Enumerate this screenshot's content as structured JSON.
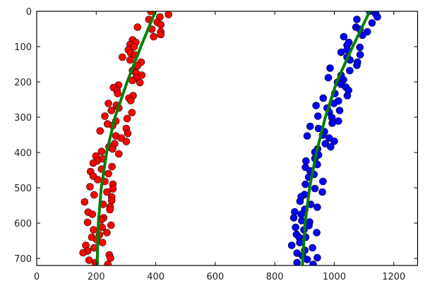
{
  "chart_data": {
    "type": "scatter",
    "title": "",
    "xlabel": "",
    "ylabel": "",
    "xlim": [
      0,
      1280
    ],
    "ylim": [
      720,
      0
    ],
    "y_inverted": true,
    "grid": false,
    "xticks": [
      0,
      200,
      400,
      600,
      800,
      1000,
      1200
    ],
    "yticks": [
      0,
      100,
      200,
      300,
      400,
      500,
      600,
      700
    ],
    "series": [
      {
        "kind": "scatter",
        "color": "#ff0000",
        "edge_color": "#000000",
        "points": [
          [
            383,
            0
          ],
          [
            377,
            23
          ],
          [
            414,
            16
          ],
          [
            443,
            9
          ],
          [
            405,
            31
          ],
          [
            417,
            38
          ],
          [
            387,
            51
          ],
          [
            417,
            58
          ],
          [
            417,
            66
          ],
          [
            393,
            72
          ],
          [
            339,
            45
          ],
          [
            322,
            81
          ],
          [
            333,
            88
          ],
          [
            314,
            94
          ],
          [
            327,
            101
          ],
          [
            308,
            109
          ],
          [
            316,
            118
          ],
          [
            331,
            124
          ],
          [
            288,
            130
          ],
          [
            314,
            138
          ],
          [
            351,
            144
          ],
          [
            339,
            154
          ],
          [
            322,
            168
          ],
          [
            334,
            174
          ],
          [
            353,
            181
          ],
          [
            334,
            188
          ],
          [
            322,
            196
          ],
          [
            347,
            202
          ],
          [
            275,
            209
          ],
          [
            258,
            216
          ],
          [
            270,
            224
          ],
          [
            272,
            233
          ],
          [
            324,
            239
          ],
          [
            310,
            246
          ],
          [
            316,
            253
          ],
          [
            241,
            261
          ],
          [
            268,
            266
          ],
          [
            276,
            274
          ],
          [
            251,
            281
          ],
          [
            320,
            287
          ],
          [
            229,
            297
          ],
          [
            304,
            304
          ],
          [
            266,
            311
          ],
          [
            238,
            319
          ],
          [
            255,
            324
          ],
          [
            301,
            332
          ],
          [
            306,
            346
          ],
          [
            213,
            339
          ],
          [
            266,
            353
          ],
          [
            284,
            359
          ],
          [
            301,
            369
          ],
          [
            262,
            375
          ],
          [
            243,
            384
          ],
          [
            255,
            390
          ],
          [
            276,
            404
          ],
          [
            218,
            397
          ],
          [
            199,
            410
          ],
          [
            222,
            418
          ],
          [
            203,
            424
          ],
          [
            190,
            430
          ],
          [
            253,
            440
          ],
          [
            218,
            447
          ],
          [
            241,
            460
          ],
          [
            181,
            454
          ],
          [
            190,
            467
          ],
          [
            205,
            477
          ],
          [
            229,
            482
          ],
          [
            256,
            490
          ],
          [
            256,
            503
          ],
          [
            179,
            497
          ],
          [
            193,
            520
          ],
          [
            236,
            512
          ],
          [
            252,
            526
          ],
          [
            252,
            536
          ],
          [
            161,
            540
          ],
          [
            223,
            547
          ],
          [
            247,
            554
          ],
          [
            246,
            562
          ],
          [
            173,
            569
          ],
          [
            187,
            575
          ],
          [
            225,
            585
          ],
          [
            217,
            591
          ],
          [
            171,
            598
          ],
          [
            250,
            606
          ],
          [
            220,
            612
          ],
          [
            191,
            619
          ],
          [
            236,
            627
          ],
          [
            211,
            633
          ],
          [
            185,
            640
          ],
          [
            202,
            647
          ],
          [
            221,
            655
          ],
          [
            165,
            663
          ],
          [
            193,
            670
          ],
          [
            171,
            679
          ],
          [
            156,
            684
          ],
          [
            244,
            690
          ],
          [
            248,
            699
          ],
          [
            176,
            705
          ],
          [
            197,
            712
          ],
          [
            239,
            717
          ]
        ]
      },
      {
        "kind": "scatter",
        "color": "#0000ff",
        "edge_color": "#000000",
        "points": [
          [
            1119,
            0
          ],
          [
            1139,
            7
          ],
          [
            1145,
            16
          ],
          [
            1127,
            33
          ],
          [
            1076,
            23
          ],
          [
            1073,
            45
          ],
          [
            1086,
            51
          ],
          [
            1111,
            58
          ],
          [
            1095,
            68
          ],
          [
            1032,
            72
          ],
          [
            1049,
            88
          ],
          [
            1043,
            96
          ],
          [
            1086,
            102
          ],
          [
            1023,
            116
          ],
          [
            1043,
            109
          ],
          [
            1087,
            123
          ],
          [
            1043,
            130
          ],
          [
            1053,
            138
          ],
          [
            1078,
            144
          ],
          [
            1076,
            153
          ],
          [
            986,
            161
          ],
          [
            1052,
            168
          ],
          [
            1023,
            181
          ],
          [
            980,
            188
          ],
          [
            1031,
            194
          ],
          [
            1011,
            201
          ],
          [
            1023,
            207
          ],
          [
            1039,
            215
          ],
          [
            1048,
            224
          ],
          [
            1044,
            239
          ],
          [
            1002,
            233
          ],
          [
            963,
            246
          ],
          [
            1014,
            254
          ],
          [
            999,
            261
          ],
          [
            939,
            267
          ],
          [
            976,
            274
          ],
          [
            1018,
            281
          ],
          [
            983,
            286
          ],
          [
            945,
            297
          ],
          [
            992,
            301
          ],
          [
            1014,
            311
          ],
          [
            993,
            317
          ],
          [
            919,
            326
          ],
          [
            947,
            332
          ],
          [
            967,
            341
          ],
          [
            961,
            351
          ],
          [
            909,
            353
          ],
          [
            983,
            359
          ],
          [
            1000,
            368
          ],
          [
            970,
            375
          ],
          [
            988,
            384
          ],
          [
            944,
            390
          ],
          [
            935,
            399
          ],
          [
            947,
            407
          ],
          [
            935,
            417
          ],
          [
            905,
            424
          ],
          [
            943,
            434
          ],
          [
            903,
            442
          ],
          [
            919,
            452
          ],
          [
            932,
            462
          ],
          [
            914,
            470
          ],
          [
            903,
            490
          ],
          [
            962,
            482
          ],
          [
            935,
            502
          ],
          [
            960,
            512
          ],
          [
            900,
            519
          ],
          [
            889,
            525
          ],
          [
            885,
            538
          ],
          [
            921,
            547
          ],
          [
            943,
            555
          ],
          [
            901,
            561
          ],
          [
            867,
            568
          ],
          [
            864,
            585
          ],
          [
            889,
            575
          ],
          [
            891,
            593
          ],
          [
            917,
            597
          ],
          [
            915,
            607
          ],
          [
            870,
            612
          ],
          [
            898,
            619
          ],
          [
            941,
            627
          ],
          [
            873,
            632
          ],
          [
            882,
            640
          ],
          [
            904,
            640
          ],
          [
            884,
            655
          ],
          [
            857,
            663
          ],
          [
            927,
            670
          ],
          [
            901,
            677
          ],
          [
            875,
            685
          ],
          [
            893,
            693
          ],
          [
            943,
            698
          ],
          [
            909,
            703
          ],
          [
            875,
            712
          ],
          [
            929,
            717
          ]
        ]
      },
      {
        "kind": "line",
        "color": "#008000",
        "points": [
          [
            399,
            0
          ],
          [
            350,
            100
          ],
          [
            304,
            200
          ],
          [
            263,
            300
          ],
          [
            235,
            400
          ],
          [
            217,
            500
          ],
          [
            207,
            600
          ],
          [
            203,
            720
          ]
        ]
      },
      {
        "kind": "line",
        "color": "#008000",
        "points": [
          [
            1119,
            0
          ],
          [
            1062,
            100
          ],
          [
            1008,
            200
          ],
          [
            970,
            300
          ],
          [
            940,
            400
          ],
          [
            917,
            500
          ],
          [
            902,
            600
          ],
          [
            893,
            720
          ]
        ]
      }
    ]
  }
}
